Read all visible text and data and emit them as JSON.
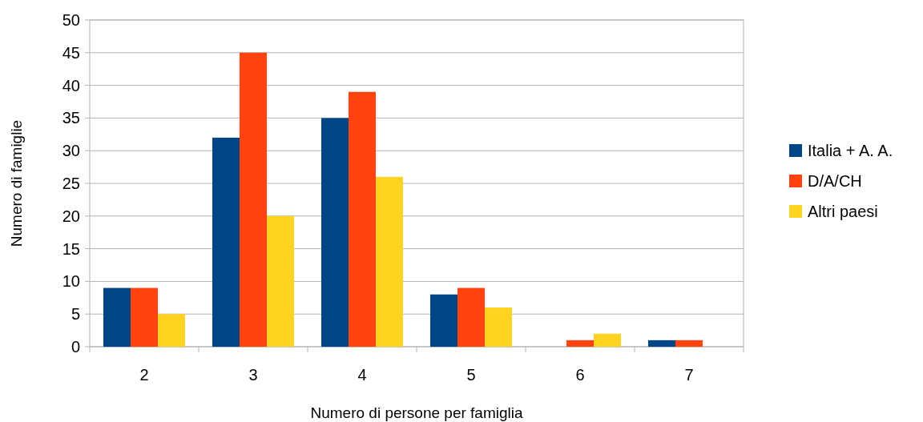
{
  "chart_data": {
    "type": "bar",
    "xlabel": "Numero di persone per famiglia",
    "ylabel": "Numero di famiglie",
    "categories": [
      "2",
      "3",
      "4",
      "5",
      "6",
      "7"
    ],
    "series": [
      {
        "name": "Italia + A. A.",
        "color": "#004586",
        "values": [
          9,
          32,
          35,
          8,
          0,
          1
        ]
      },
      {
        "name": "D/A/CH",
        "color": "#ff420e",
        "values": [
          9,
          45,
          39,
          9,
          1,
          1
        ]
      },
      {
        "name": "Altri paesi",
        "color": "#ffd320",
        "values": [
          5,
          20,
          26,
          6,
          2,
          0
        ]
      }
    ],
    "ylim": [
      0,
      50
    ],
    "yticks": [
      0,
      5,
      10,
      15,
      20,
      25,
      30,
      35,
      40,
      45,
      50
    ],
    "grid": "y",
    "legend": "right"
  }
}
